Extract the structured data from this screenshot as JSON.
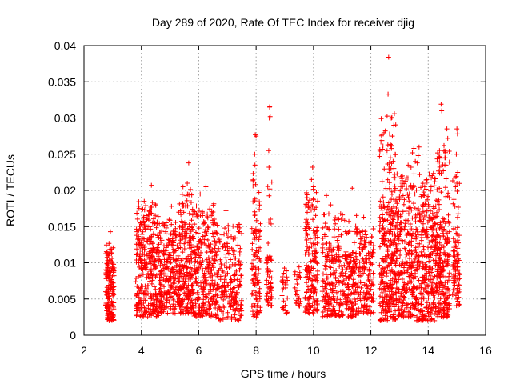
{
  "chart_data": {
    "type": "scatter",
    "title": "Day 289 of 2020, Rate Of TEC Index for receiver djig",
    "xlabel": "GPS time / hours",
    "ylabel": "ROTI / TECUs",
    "xlim": [
      2,
      16
    ],
    "ylim": [
      0,
      0.04
    ],
    "x_ticks": [
      2,
      4,
      6,
      8,
      10,
      12,
      14,
      16
    ],
    "x_tick_labels": [
      "2",
      "4",
      "6",
      "8",
      "10",
      "12",
      "14",
      "16"
    ],
    "y_ticks": [
      0,
      0.005,
      0.01,
      0.015,
      0.02,
      0.025,
      0.03,
      0.035,
      0.04
    ],
    "y_tick_labels": [
      "0",
      "0.005",
      "0.01",
      "0.015",
      "0.02",
      "0.025",
      "0.03",
      "0.035",
      "0.04"
    ],
    "grid": true,
    "marker": "+",
    "marker_color": "#ff0000",
    "series": [
      {
        "name": "ROTI",
        "clusters": [
          {
            "x_start": 2.75,
            "x_end": 3.05,
            "y_min": 0.002,
            "y_max": 0.0145,
            "typical_max": 0.01,
            "count": 160,
            "outliers": [
              [
                2.92,
                0.0143
              ]
            ]
          },
          {
            "x_start": 3.8,
            "x_end": 4.6,
            "y_min": 0.0025,
            "y_max": 0.021,
            "typical_max": 0.015,
            "count": 320,
            "outliers": [
              [
                4.35,
                0.0207
              ],
              [
                4.1,
                0.0185
              ]
            ]
          },
          {
            "x_start": 4.6,
            "x_end": 5.3,
            "y_min": 0.003,
            "y_max": 0.018,
            "typical_max": 0.013,
            "count": 240,
            "outliers": [
              [
                5.05,
                0.0178
              ]
            ]
          },
          {
            "x_start": 5.3,
            "x_end": 5.8,
            "y_min": 0.003,
            "y_max": 0.024,
            "typical_max": 0.015,
            "count": 230,
            "outliers": [
              [
                5.65,
                0.0238
              ],
              [
                5.6,
                0.021
              ],
              [
                5.45,
                0.0205
              ]
            ]
          },
          {
            "x_start": 5.8,
            "x_end": 6.6,
            "y_min": 0.0025,
            "y_max": 0.021,
            "typical_max": 0.014,
            "count": 260,
            "outliers": [
              [
                6.25,
                0.0205
              ],
              [
                6.05,
                0.0195
              ]
            ]
          },
          {
            "x_start": 6.6,
            "x_end": 7.5,
            "y_min": 0.002,
            "y_max": 0.0175,
            "typical_max": 0.0125,
            "count": 220,
            "outliers": [
              [
                6.95,
                0.0172
              ]
            ]
          },
          {
            "x_start": 7.85,
            "x_end": 8.15,
            "y_min": 0.0025,
            "y_max": 0.028,
            "typical_max": 0.015,
            "count": 110,
            "outliers": [
              [
                7.97,
                0.0277
              ],
              [
                8.0,
                0.0275
              ],
              [
                7.95,
                0.025
              ],
              [
                7.96,
                0.0235
              ],
              [
                7.98,
                0.0208
              ]
            ]
          },
          {
            "x_start": 8.35,
            "x_end": 8.55,
            "y_min": 0.004,
            "y_max": 0.0318,
            "typical_max": 0.011,
            "count": 60,
            "outliers": [
              [
                8.48,
                0.0316
              ],
              [
                8.47,
                0.0315
              ],
              [
                8.49,
                0.0302
              ],
              [
                8.46,
                0.03
              ],
              [
                8.44,
                0.0255
              ],
              [
                8.45,
                0.0232
              ]
            ]
          },
          {
            "x_start": 8.9,
            "x_end": 9.1,
            "y_min": 0.003,
            "y_max": 0.0105,
            "typical_max": 0.008,
            "count": 30,
            "outliers": []
          },
          {
            "x_start": 9.35,
            "x_end": 9.55,
            "y_min": 0.004,
            "y_max": 0.0105,
            "typical_max": 0.008,
            "count": 25,
            "outliers": []
          },
          {
            "x_start": 9.7,
            "x_end": 10.15,
            "y_min": 0.003,
            "y_max": 0.0235,
            "typical_max": 0.0155,
            "count": 170,
            "outliers": [
              [
                9.97,
                0.0232
              ],
              [
                9.93,
                0.0215
              ],
              [
                10.0,
                0.0205
              ]
            ]
          },
          {
            "x_start": 10.3,
            "x_end": 11.0,
            "y_min": 0.0025,
            "y_max": 0.0195,
            "typical_max": 0.013,
            "count": 200,
            "outliers": [
              [
                10.45,
                0.0193
              ],
              [
                10.6,
                0.018
              ]
            ]
          },
          {
            "x_start": 11.0,
            "x_end": 11.5,
            "y_min": 0.0025,
            "y_max": 0.0205,
            "typical_max": 0.0115,
            "count": 150,
            "outliers": [
              [
                11.35,
                0.0203
              ]
            ]
          },
          {
            "x_start": 11.5,
            "x_end": 12.1,
            "y_min": 0.003,
            "y_max": 0.0165,
            "typical_max": 0.012,
            "count": 160,
            "outliers": [
              [
                11.75,
                0.0163
              ]
            ]
          },
          {
            "x_start": 12.3,
            "x_end": 12.9,
            "y_min": 0.002,
            "y_max": 0.0385,
            "typical_max": 0.018,
            "count": 320,
            "outliers": [
              [
                12.62,
                0.0384
              ],
              [
                12.6,
                0.0333
              ],
              [
                12.82,
                0.0306
              ],
              [
                12.8,
                0.029
              ],
              [
                12.75,
                0.0275
              ],
              [
                12.72,
                0.0262
              ],
              [
                12.68,
                0.0245
              ],
              [
                12.85,
                0.025
              ],
              [
                12.7,
                0.023
              ],
              [
                12.65,
                0.0225
              ]
            ]
          },
          {
            "x_start": 12.9,
            "x_end": 13.6,
            "y_min": 0.0025,
            "y_max": 0.026,
            "typical_max": 0.017,
            "count": 280,
            "outliers": [
              [
                13.3,
                0.0235
              ],
              [
                13.1,
                0.022
              ],
              [
                13.5,
                0.0258
              ],
              [
                13.45,
                0.0252
              ],
              [
                13.55,
                0.024
              ],
              [
                13.4,
                0.0232
              ]
            ]
          },
          {
            "x_start": 13.6,
            "x_end": 14.3,
            "y_min": 0.002,
            "y_max": 0.026,
            "typical_max": 0.017,
            "count": 300,
            "outliers": [
              [
                13.68,
                0.026
              ],
              [
                13.65,
                0.0248
              ],
              [
                13.62,
                0.0238
              ],
              [
                13.7,
                0.0222
              ],
              [
                14.1,
                0.0205
              ],
              [
                14.2,
                0.0195
              ]
            ]
          },
          {
            "x_start": 14.3,
            "x_end": 14.75,
            "y_min": 0.0025,
            "y_max": 0.032,
            "typical_max": 0.0165,
            "count": 230,
            "outliers": [
              [
                14.45,
                0.0319
              ],
              [
                14.47,
                0.031
              ],
              [
                14.55,
                0.0262
              ],
              [
                14.6,
                0.0245
              ],
              [
                14.62,
                0.0235
              ],
              [
                14.65,
                0.0285
              ],
              [
                14.68,
                0.0272
              ]
            ]
          },
          {
            "x_start": 14.85,
            "x_end": 15.1,
            "y_min": 0.004,
            "y_max": 0.0288,
            "typical_max": 0.0135,
            "count": 100,
            "outliers": [
              [
                15.0,
                0.0285
              ],
              [
                15.02,
                0.0278
              ],
              [
                14.98,
                0.025
              ],
              [
                15.0,
                0.021
              ],
              [
                14.95,
                0.0205
              ]
            ]
          }
        ]
      }
    ]
  }
}
